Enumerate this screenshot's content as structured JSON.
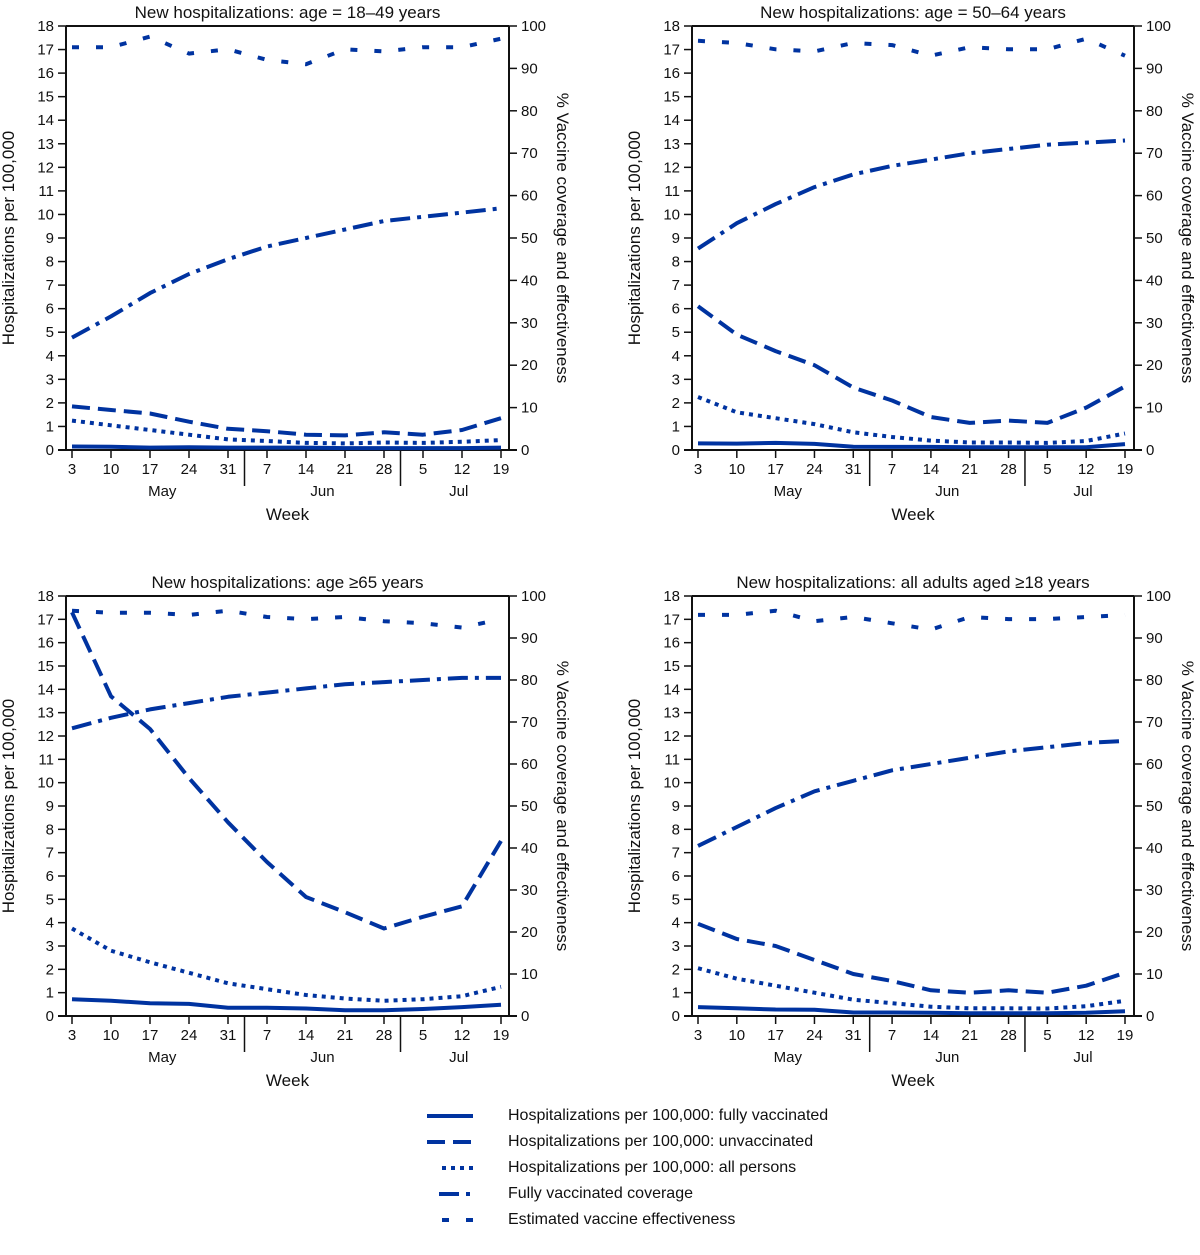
{
  "colors": {
    "series": "#0033a0",
    "axis": "#111111"
  },
  "chart_data": [
    {
      "type": "line",
      "title": "New hospitalizations: age = 18–49 years",
      "xlabel": "Week",
      "ylabel": "Hospitalizations per 100,000",
      "ylabel_right": "% Vaccine coverage and effectiveness",
      "ylim": [
        0,
        18
      ],
      "ylim_right": [
        0,
        100
      ],
      "x": [
        "3",
        "10",
        "17",
        "24",
        "31",
        "7",
        "14",
        "21",
        "28",
        "5",
        "12",
        "19"
      ],
      "months": [
        "May",
        "Jun",
        "Jul"
      ],
      "series": [
        {
          "name": "Hospitalizations per 100,000: fully vaccinated",
          "axis": "left",
          "values": [
            0.15,
            0.14,
            0.1,
            0.12,
            0.1,
            0.1,
            0.1,
            0.08,
            0.08,
            0.08,
            0.08,
            0.1
          ]
        },
        {
          "name": "Hospitalizations per 100,000: unvaccinated",
          "axis": "left",
          "values": [
            1.85,
            1.7,
            1.55,
            1.2,
            0.9,
            0.8,
            0.65,
            0.62,
            0.75,
            0.65,
            0.85,
            1.35
          ]
        },
        {
          "name": "Hospitalizations per 100,000: all persons",
          "axis": "left",
          "values": [
            1.25,
            1.05,
            0.85,
            0.65,
            0.45,
            0.38,
            0.3,
            0.28,
            0.32,
            0.3,
            0.35,
            0.42
          ]
        },
        {
          "name": "Fully vaccinated coverage",
          "axis": "right",
          "values": [
            26.5,
            31.5,
            37,
            41.5,
            45,
            48,
            50,
            52,
            54,
            55,
            56,
            57
          ]
        },
        {
          "name": "Estimated vaccine effectiveness",
          "axis": "right",
          "values": [
            95,
            95,
            97.5,
            93.5,
            94.5,
            92,
            91,
            94.5,
            94,
            95,
            95,
            97
          ]
        }
      ]
    },
    {
      "type": "line",
      "title": "New hospitalizations: age = 50–64 years",
      "xlabel": "Week",
      "ylabel": "Hospitalizations per 100,000",
      "ylabel_right": "% Vaccine coverage and effectiveness",
      "ylim": [
        0,
        18
      ],
      "ylim_right": [
        0,
        100
      ],
      "x": [
        "3",
        "10",
        "17",
        "24",
        "31",
        "7",
        "14",
        "21",
        "28",
        "5",
        "12",
        "19"
      ],
      "months": [
        "May",
        "Jun",
        "Jul"
      ],
      "series": [
        {
          "name": "Hospitalizations per 100,000: fully vaccinated",
          "axis": "left",
          "values": [
            0.28,
            0.27,
            0.3,
            0.26,
            0.14,
            0.13,
            0.13,
            0.12,
            0.12,
            0.12,
            0.12,
            0.25
          ]
        },
        {
          "name": "Hospitalizations per 100,000: unvaccinated",
          "axis": "left",
          "values": [
            6.1,
            4.9,
            4.2,
            3.6,
            2.65,
            2.1,
            1.4,
            1.15,
            1.25,
            1.15,
            1.8,
            2.7
          ]
        },
        {
          "name": "Hospitalizations per 100,000: all persons",
          "axis": "left",
          "values": [
            2.25,
            1.6,
            1.35,
            1.1,
            0.75,
            0.55,
            0.4,
            0.32,
            0.32,
            0.3,
            0.38,
            0.7
          ]
        },
        {
          "name": "Fully vaccinated coverage",
          "axis": "right",
          "values": [
            47.5,
            53.5,
            58,
            62,
            65,
            67,
            68.5,
            70,
            71,
            72,
            72.5,
            73
          ]
        },
        {
          "name": "Estimated vaccine effectiveness",
          "axis": "right",
          "values": [
            96.5,
            96,
            94.5,
            94,
            96,
            95.5,
            93,
            95,
            94.5,
            94.5,
            97,
            93
          ]
        }
      ]
    },
    {
      "type": "line",
      "title": "New hospitalizations: age ≥65 years",
      "xlabel": "Week",
      "ylabel": "Hospitalizations per 100,000",
      "ylabel_right": "% Vaccine coverage and effectiveness",
      "ylim": [
        0,
        18
      ],
      "ylim_right": [
        0,
        100
      ],
      "x": [
        "3",
        "10",
        "17",
        "24",
        "31",
        "7",
        "14",
        "21",
        "28",
        "5",
        "12",
        "19"
      ],
      "months": [
        "May",
        "Jun",
        "Jul"
      ],
      "series": [
        {
          "name": "Hospitalizations per 100,000: fully vaccinated",
          "axis": "left",
          "values": [
            0.72,
            0.65,
            0.55,
            0.52,
            0.35,
            0.35,
            0.32,
            0.25,
            0.25,
            0.3,
            0.38,
            0.48
          ]
        },
        {
          "name": "Hospitalizations per 100,000: unvaccinated",
          "axis": "left",
          "values": [
            17.3,
            13.7,
            12.3,
            10.2,
            8.3,
            6.6,
            5.1,
            4.45,
            3.75,
            4.25,
            4.7,
            7.5
          ]
        },
        {
          "name": "Hospitalizations per 100,000: all persons",
          "axis": "left",
          "values": [
            3.75,
            2.8,
            2.3,
            1.85,
            1.4,
            1.15,
            0.9,
            0.75,
            0.65,
            0.72,
            0.85,
            1.25
          ]
        },
        {
          "name": "Fully vaccinated coverage",
          "axis": "right",
          "values": [
            68.5,
            71,
            73,
            74.5,
            76,
            77,
            78,
            79,
            79.5,
            80,
            80.5,
            80.5
          ]
        },
        {
          "name": "Estimated vaccine effectiveness",
          "axis": "right",
          "values": [
            96.5,
            96,
            96,
            95.5,
            96.5,
            95,
            94.5,
            95,
            94,
            93.5,
            92.5,
            94.5
          ]
        }
      ]
    },
    {
      "type": "line",
      "title": "New hospitalizations: all adults aged ≥18 years",
      "xlabel": "Week",
      "ylabel": "Hospitalizations per 100,000",
      "ylabel_right": "% Vaccine coverage and effectiveness",
      "ylim": [
        0,
        18
      ],
      "ylim_right": [
        0,
        100
      ],
      "x": [
        "3",
        "10",
        "17",
        "24",
        "31",
        "7",
        "14",
        "21",
        "28",
        "5",
        "12",
        "19"
      ],
      "months": [
        "May",
        "Jun",
        "Jul"
      ],
      "series": [
        {
          "name": "Hospitalizations per 100,000: fully vaccinated",
          "axis": "left",
          "values": [
            0.38,
            0.33,
            0.28,
            0.27,
            0.15,
            0.15,
            0.14,
            0.12,
            0.12,
            0.12,
            0.14,
            0.2
          ]
        },
        {
          "name": "Hospitalizations per 100,000: unvaccinated",
          "axis": "left",
          "values": [
            3.95,
            3.3,
            3.0,
            2.4,
            1.8,
            1.5,
            1.1,
            1.0,
            1.1,
            1.0,
            1.3,
            1.85
          ]
        },
        {
          "name": "Hospitalizations per 100,000: all persons",
          "axis": "left",
          "values": [
            2.05,
            1.6,
            1.3,
            1.0,
            0.7,
            0.55,
            0.4,
            0.33,
            0.33,
            0.32,
            0.42,
            0.65
          ]
        },
        {
          "name": "Fully vaccinated coverage",
          "axis": "right",
          "values": [
            40.5,
            45,
            49.5,
            53.5,
            56,
            58.5,
            60,
            61.5,
            63,
            64,
            65,
            65.5
          ]
        },
        {
          "name": "Estimated vaccine effectiveness",
          "axis": "right",
          "values": [
            95.5,
            95.5,
            96.5,
            94,
            95,
            93.5,
            92,
            95,
            94.5,
            94.5,
            95,
            95.5
          ]
        }
      ]
    }
  ],
  "legend": {
    "placement": "bottom-center",
    "items": [
      {
        "label": "Hospitalizations per 100,000: fully vaccinated",
        "style": "solid"
      },
      {
        "label": "Hospitalizations per 100,000: unvaccinated",
        "style": "dashed"
      },
      {
        "label": "Hospitalizations per 100,000: all persons",
        "style": "dotted"
      },
      {
        "label": "Fully vaccinated coverage",
        "style": "dash-dot"
      },
      {
        "label": "Estimated vaccine effectiveness",
        "style": "sparse-dash"
      }
    ]
  }
}
